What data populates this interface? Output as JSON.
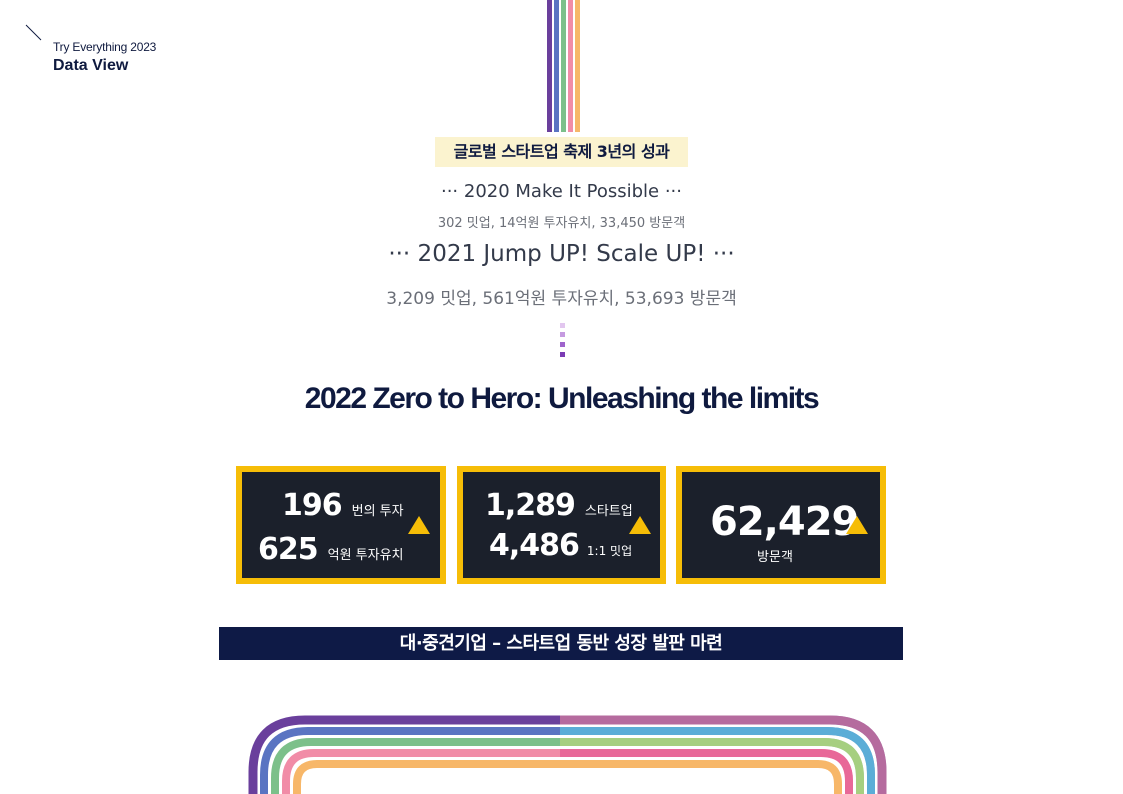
{
  "brand": {
    "subtitle": "Try Everything 2023",
    "title": "Data View"
  },
  "section_heading": "글로벌 스타트업 축제 3년의 성과",
  "timeline": {
    "y2020": {
      "title": "··· 2020 Make It Possible ···",
      "stats": "302 밋업, 14억원 투자유치, 33,450 방문객"
    },
    "y2021": {
      "title": "··· 2021 Jump UP! Scale UP! ···",
      "stats": "3,209 밋업, 561억원 투자유치, 53,693 방문객"
    }
  },
  "headline": "2022 Zero to Hero: Unleashing the limits",
  "stats": {
    "box1": {
      "row1": {
        "value": "196",
        "label": "번의 투자"
      },
      "row2": {
        "value": "625",
        "label": "억원 투자유치"
      }
    },
    "box2": {
      "row1": {
        "value": "1,289",
        "label": "스타트업"
      },
      "row2": {
        "value": "4,486",
        "label": "1:1 밋업"
      }
    },
    "box3": {
      "value": "62,429",
      "label": "방문객"
    }
  },
  "banner": "대·중견기업 – 스타트업 동반 성장 발판 마련",
  "colors": {
    "navy": "#0f1a3f",
    "gold": "#f6bd07",
    "box_bg": "#1b202b",
    "stripes": [
      "#6a3f9c",
      "#5a74c2",
      "#7cc08a",
      "#f18ca7",
      "#f7b769"
    ]
  }
}
